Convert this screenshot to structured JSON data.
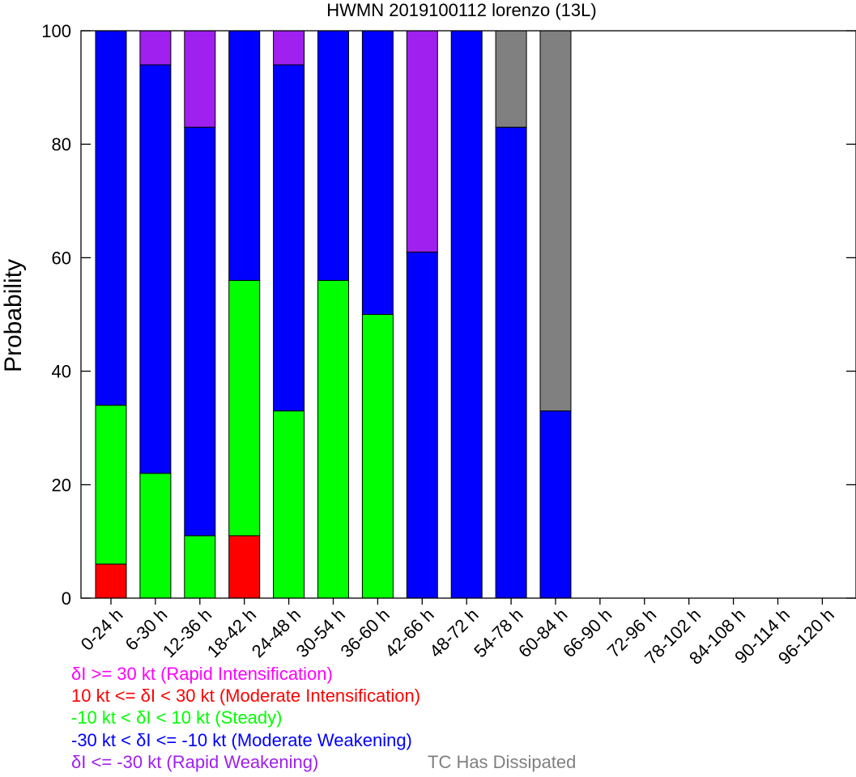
{
  "chart_data": {
    "type": "bar",
    "stacked": true,
    "title": "HWMN 2019100112 lorenzo (13L)",
    "xlabel": "",
    "ylabel": "Probability",
    "ylim": [
      0,
      100
    ],
    "yticks": [
      0,
      20,
      40,
      60,
      80,
      100
    ],
    "grid": false,
    "categories": [
      "0-24 h",
      "6-30 h",
      "12-36 h",
      "18-42 h",
      "24-48 h",
      "30-54 h",
      "36-60 h",
      "42-66 h",
      "48-72 h",
      "54-78 h",
      "60-84 h",
      "66-90 h",
      "72-96 h",
      "78-102 h",
      "84-108 h",
      "90-114 h",
      "96-120 h"
    ],
    "series": [
      {
        "name": "δI <= -30 kt (Rapid Weakening)",
        "color": "#a020f0",
        "values": [
          0,
          6,
          17,
          0,
          6,
          0,
          0,
          39,
          0,
          0,
          0,
          0,
          0,
          0,
          0,
          0,
          0
        ]
      },
      {
        "name": "-30 kt < δI <= -10 kt (Moderate Weakening)",
        "color": "#0000ff",
        "values": [
          66,
          72,
          72,
          44,
          61,
          44,
          50,
          61,
          100,
          83,
          33,
          0,
          0,
          0,
          0,
          0,
          0
        ]
      },
      {
        "name": "-10 kt < δI < 10 kt (Steady)",
        "color": "#00ff00",
        "values": [
          28,
          22,
          11,
          45,
          33,
          56,
          50,
          0,
          0,
          0,
          0,
          0,
          0,
          0,
          0,
          0,
          0
        ]
      },
      {
        "name": "10 kt <= δI < 30 kt (Moderate Intensification)",
        "color": "#ff0000",
        "values": [
          6,
          0,
          0,
          11,
          0,
          0,
          0,
          0,
          0,
          0,
          0,
          0,
          0,
          0,
          0,
          0,
          0
        ]
      },
      {
        "name": "δI >= 30 kt (Rapid Intensification)",
        "color": "#ff00ff",
        "values": [
          0,
          0,
          0,
          0,
          0,
          0,
          0,
          0,
          0,
          0,
          0,
          0,
          0,
          0,
          0,
          0,
          0
        ]
      },
      {
        "name": "TC Has Dissipated",
        "color": "#808080",
        "values": [
          0,
          0,
          0,
          0,
          0,
          0,
          0,
          0,
          0,
          17,
          67,
          0,
          0,
          0,
          0,
          0,
          0
        ]
      }
    ],
    "stack_order_bottom_to_top": [
      3,
      2,
      1,
      0,
      4,
      5
    ]
  },
  "legend": {
    "ri": {
      "text": "δI >= 30 kt (Rapid Intensification)",
      "color": "#ff00ff"
    },
    "mi": {
      "text": "10 kt <= δI < 30 kt (Moderate Intensification)",
      "color": "#ff0000"
    },
    "steady": {
      "text": "-10 kt < δI < 10 kt (Steady)",
      "color": "#00ff00"
    },
    "mw": {
      "text": "-30 kt < δI <= -10 kt (Moderate Weakening)",
      "color": "#0000ff"
    },
    "rw": {
      "text": "δI <= -30 kt (Rapid Weakening)",
      "color": "#a020f0"
    },
    "dissipated": {
      "text": "TC Has Dissipated",
      "color": "#808080"
    }
  }
}
